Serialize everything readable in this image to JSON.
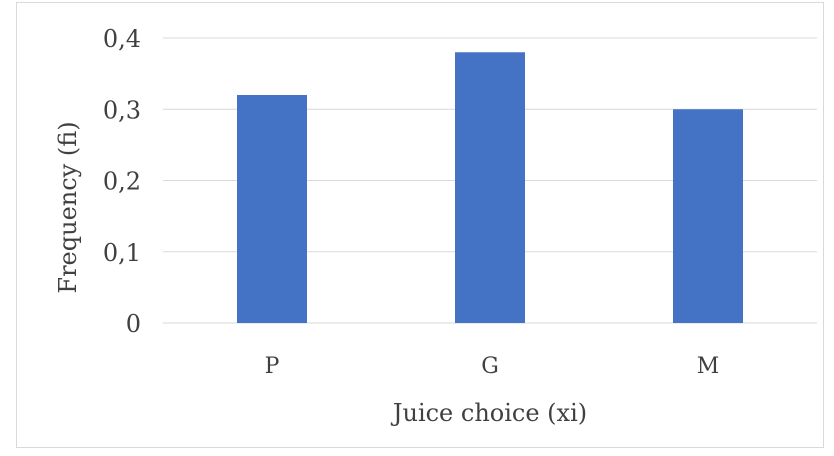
{
  "chart_data": {
    "type": "bar",
    "title": "",
    "xlabel": "Juice choice (xi)",
    "ylabel": "Frequency (fi)",
    "categories": [
      "P",
      "G",
      "M"
    ],
    "values": [
      0.32,
      0.38,
      0.3
    ],
    "ylim": [
      0,
      0.4
    ],
    "yticks": [
      0,
      0.1,
      0.2,
      0.3,
      0.4
    ],
    "ytick_labels": [
      "0",
      "0,1",
      "0,2",
      "0,3",
      "0,4"
    ],
    "grid": true,
    "legend": "none",
    "bar_color": "#4472C4",
    "grid_color": "#d9d9d9"
  }
}
